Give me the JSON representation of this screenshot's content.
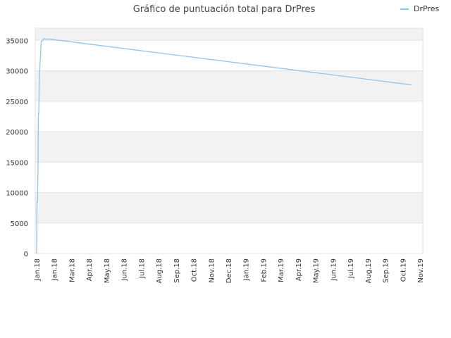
{
  "chart_data": {
    "type": "line",
    "title": "Gráfico de puntuación total para DrPres",
    "xlabel": "",
    "ylabel": "",
    "ylim": [
      0,
      37000
    ],
    "y_ticks": [
      0,
      5000,
      10000,
      15000,
      20000,
      25000,
      30000,
      35000
    ],
    "x_ticks": [
      "Jan.18",
      "Jan.18",
      "Mar.18",
      "Apr.18",
      "May.18",
      "Jun.18",
      "Jul.18",
      "Aug.18",
      "Sep.18",
      "Oct.18",
      "Nov.18",
      "Dec.18",
      "Jan.19",
      "Feb.19",
      "Mar.19",
      "Apr.19",
      "May.19",
      "Jun.19",
      "Jul.19",
      "Aug.19",
      "Sep.19",
      "Oct.19",
      "Nov.19"
    ],
    "grid": true,
    "legend_position": "top-right",
    "series": [
      {
        "name": "DrPres",
        "color": "#90c4ec",
        "x": [
          0,
          0.02,
          0.05,
          0.08,
          0.1,
          0.12,
          0.15,
          0.18,
          0.22,
          0.26,
          0.3,
          0.35,
          0.42,
          0.55,
          0.75,
          21.5
        ],
        "values": [
          0,
          8500,
          8500,
          14800,
          23000,
          23000,
          27800,
          30500,
          32500,
          34700,
          34900,
          35000,
          35300,
          35200,
          35200,
          27700
        ]
      }
    ]
  }
}
